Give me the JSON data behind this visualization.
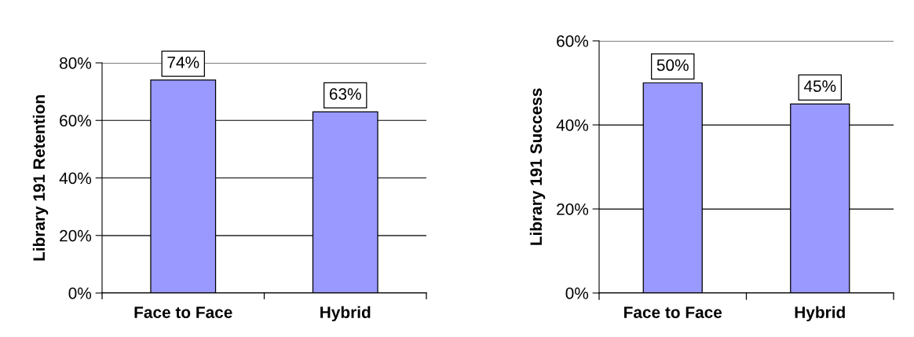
{
  "chart_data": [
    {
      "type": "bar",
      "ylabel": "Library 191 Retention",
      "categories": [
        "Face to Face",
        "Hybrid"
      ],
      "values": [
        74,
        63
      ],
      "value_labels": [
        "74%",
        "63%"
      ],
      "color": "#9999ff",
      "ylim": [
        0,
        80
      ],
      "yticks": [
        {
          "value": 0,
          "label": "0%"
        },
        {
          "value": 20,
          "label": "20%"
        },
        {
          "value": 40,
          "label": "40%"
        },
        {
          "value": 60,
          "label": "60%"
        },
        {
          "value": 80,
          "label": "80%"
        }
      ],
      "grid": "y"
    },
    {
      "type": "bar",
      "ylabel": "Library 191 Success",
      "categories": [
        "Face to Face",
        "Hybrid"
      ],
      "values": [
        50,
        45
      ],
      "value_labels": [
        "50%",
        "45%"
      ],
      "color": "#9999ff",
      "ylim": [
        0,
        60
      ],
      "yticks": [
        {
          "value": 0,
          "label": "0%"
        },
        {
          "value": 20,
          "label": "20%"
        },
        {
          "value": 40,
          "label": "40%"
        },
        {
          "value": 60,
          "label": "60%"
        }
      ],
      "grid": "y"
    }
  ]
}
